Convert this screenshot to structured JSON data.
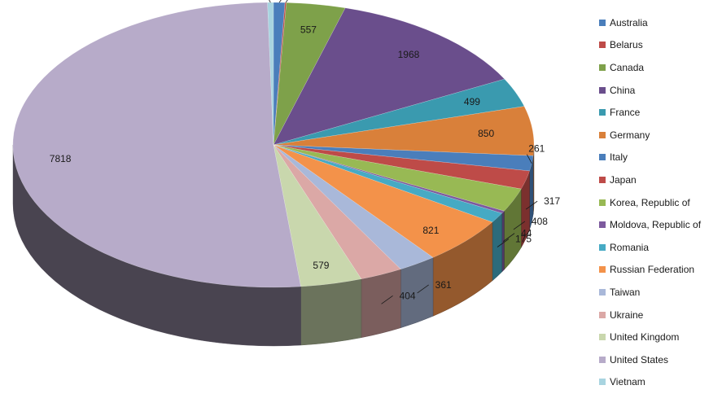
{
  "chart_data": {
    "type": "pie",
    "style": "3d-exploded-slices-none",
    "title": "",
    "legend_position": "right",
    "categories": [
      "Australia",
      "Belarus",
      "Canada",
      "China",
      "France",
      "Germany",
      "Italy",
      "Japan",
      "Korea, Republic of",
      "Moldova, Republic of",
      "Romania",
      "Russian Federation",
      "Taiwan",
      "Ukraine",
      "United Kingdom",
      "United States",
      "Vietnam"
    ],
    "values": [
      107,
      13,
      557,
      1968,
      499,
      850,
      261,
      317,
      408,
      44,
      175,
      821,
      361,
      404,
      579,
      7818,
      56
    ],
    "data_labels": [
      "107",
      "13",
      "557",
      "1968",
      "499",
      "850",
      "261",
      "317",
      "408",
      "44",
      "175",
      "821",
      "361",
      "404",
      "579",
      "7818",
      "56"
    ],
    "colors": [
      "#4a7ebb",
      "#be4b48",
      "#7ea14a",
      "#6a4e8c",
      "#3a9aaf",
      "#d9803a",
      "#4a7ebb",
      "#be4b48",
      "#98b954",
      "#7d5a9e",
      "#46aac4",
      "#f3924a",
      "#a9b8d9",
      "#dba8a6",
      "#c9d7ad",
      "#b7abc9",
      "#a8d4e0"
    ]
  }
}
